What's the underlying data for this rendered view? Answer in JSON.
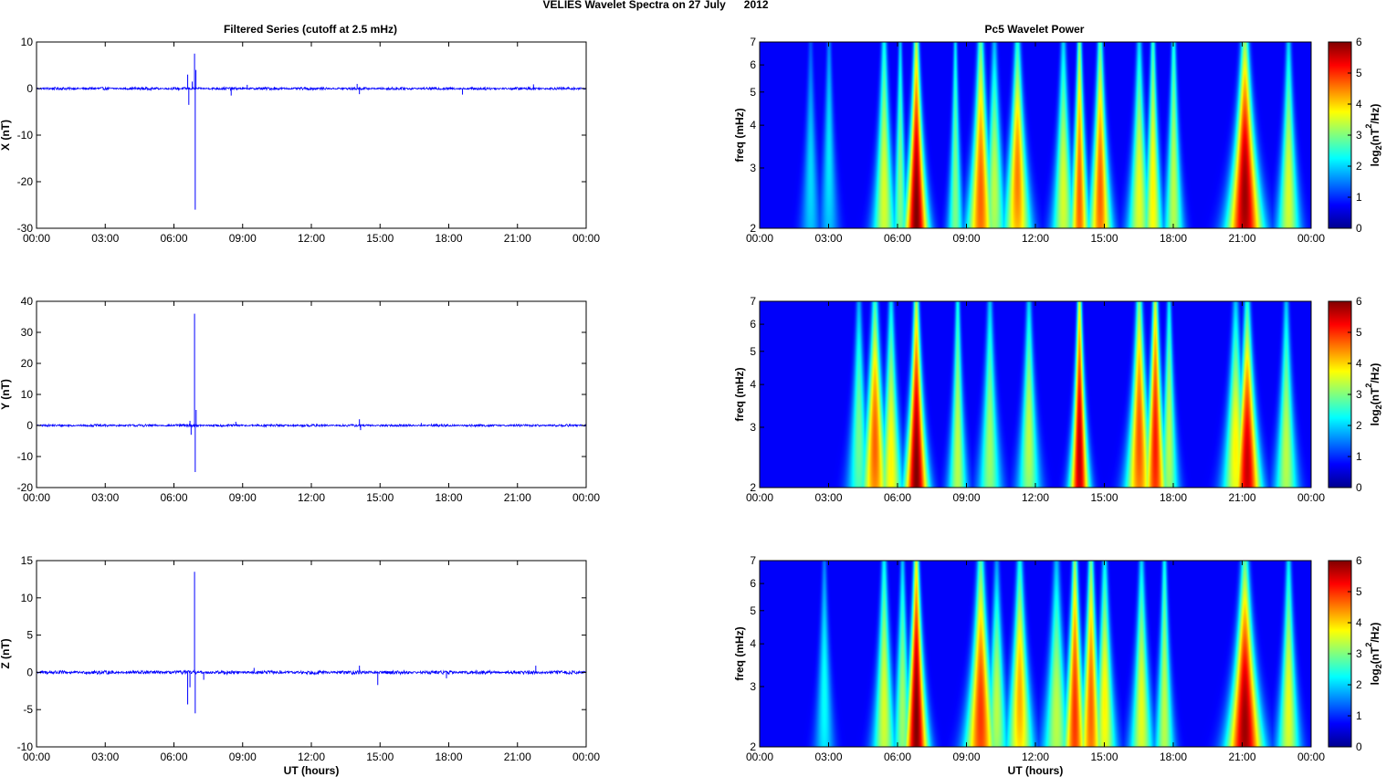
{
  "figure": {
    "suptitle": "VELIES Wavelet Spectra on 27 July      2012",
    "left_title": "Filtered Series (cutoff at 2.5 mHz)",
    "right_title": "Pc5 Wavelet Power"
  },
  "colors": {
    "trace": "#0000ff",
    "colormap": "jet",
    "axis": "#000000",
    "background": "#ffffff"
  },
  "chart_data": [
    {
      "type": "line",
      "ylabel": "X (nT)",
      "xlabel": "",
      "ylim": [
        -30,
        10
      ],
      "yticks": [
        "10",
        "0",
        "-10",
        "-20",
        "-30"
      ],
      "xticks": [
        "00:00",
        "03:00",
        "06:00",
        "09:00",
        "12:00",
        "15:00",
        "18:00",
        "21:00",
        "00:00"
      ],
      "xlim_hours": [
        0,
        24
      ],
      "baseline_noise_nT": 0.3,
      "series": [
        {
          "spikes": [
            {
              "t": 6.6,
              "v": 3.0
            },
            {
              "t": 6.65,
              "v": -3.5
            },
            {
              "t": 6.8,
              "v": 1.5
            },
            {
              "t": 6.9,
              "v": 7.5
            },
            {
              "t": 6.93,
              "v": -26.0
            },
            {
              "t": 6.96,
              "v": 4.0
            },
            {
              "t": 8.5,
              "v": -1.5
            },
            {
              "t": 9.2,
              "v": 0.8
            },
            {
              "t": 14.0,
              "v": 1.0
            },
            {
              "t": 14.1,
              "v": -1.2
            },
            {
              "t": 18.6,
              "v": -1.3
            },
            {
              "t": 21.7,
              "v": 0.9
            }
          ]
        }
      ]
    },
    {
      "type": "line",
      "ylabel": "Y (nT)",
      "xlabel": "",
      "ylim": [
        -20,
        40
      ],
      "yticks": [
        "40",
        "30",
        "20",
        "10",
        "0",
        "-10",
        "-20"
      ],
      "xticks": [
        "00:00",
        "03:00",
        "06:00",
        "09:00",
        "12:00",
        "15:00",
        "18:00",
        "21:00",
        "00:00"
      ],
      "xlim_hours": [
        0,
        24
      ],
      "baseline_noise_nT": 0.4,
      "series": [
        {
          "spikes": [
            {
              "t": 6.7,
              "v": 1.5
            },
            {
              "t": 6.75,
              "v": -3.0
            },
            {
              "t": 6.9,
              "v": 36.0
            },
            {
              "t": 6.93,
              "v": -15.0
            },
            {
              "t": 6.97,
              "v": 5.0
            },
            {
              "t": 8.7,
              "v": 1.2
            },
            {
              "t": 14.1,
              "v": 2.0
            },
            {
              "t": 14.15,
              "v": -1.5
            },
            {
              "t": 16.8,
              "v": 0.8
            }
          ]
        }
      ]
    },
    {
      "type": "line",
      "ylabel": "Z (nT)",
      "xlabel": "UT (hours)",
      "ylim": [
        -10,
        15
      ],
      "yticks": [
        "15",
        "10",
        "5",
        "0",
        "-5",
        "-10"
      ],
      "xticks": [
        "00:00",
        "03:00",
        "06:00",
        "09:00",
        "12:00",
        "15:00",
        "18:00",
        "21:00",
        "00:00"
      ],
      "xlim_hours": [
        0,
        24
      ],
      "baseline_noise_nT": 0.25,
      "series": [
        {
          "spikes": [
            {
              "t": 6.6,
              "v": -4.3
            },
            {
              "t": 6.7,
              "v": -2.0
            },
            {
              "t": 6.9,
              "v": 13.5
            },
            {
              "t": 6.93,
              "v": -5.5
            },
            {
              "t": 7.3,
              "v": -1.0
            },
            {
              "t": 9.5,
              "v": 0.6
            },
            {
              "t": 14.1,
              "v": 0.9
            },
            {
              "t": 14.9,
              "v": -1.7
            },
            {
              "t": 17.9,
              "v": -0.8
            },
            {
              "t": 21.8,
              "v": 0.9
            }
          ]
        }
      ]
    },
    {
      "type": "heatmap",
      "ylabel": "freq (mHz)",
      "xlabel": "",
      "y_scale": "log",
      "ylim": [
        2,
        7
      ],
      "yticks": [
        "7",
        "6",
        "5",
        "4",
        "3",
        "2"
      ],
      "xticks": [
        "00:00",
        "03:00",
        "06:00",
        "09:00",
        "12:00",
        "15:00",
        "18:00",
        "21:00",
        "00:00"
      ],
      "xlim_hours": [
        0,
        24
      ],
      "colorbar": {
        "label": "log2(nT2/Hz)",
        "ticks": [
          "6",
          "5",
          "4",
          "3",
          "2",
          "1",
          "0"
        ],
        "range": [
          0,
          6
        ]
      },
      "blobs": [
        {
          "t": 6.8,
          "w": 0.3,
          "p": 6.0,
          "c": 2.2,
          "tall": 1
        },
        {
          "t": 5.4,
          "w": 0.3,
          "p": 3.2,
          "c": 2.6,
          "tall": 0.9
        },
        {
          "t": 6.1,
          "w": 0.2,
          "p": 2.6,
          "c": 2.7,
          "tall": 0.8
        },
        {
          "t": 8.5,
          "w": 0.2,
          "p": 2.6,
          "c": 2.6,
          "tall": 1
        },
        {
          "t": 9.6,
          "w": 0.35,
          "p": 4.5,
          "c": 2.5,
          "tall": 0.9
        },
        {
          "t": 10.2,
          "w": 0.3,
          "p": 3.0,
          "c": 2.7,
          "tall": 0.6
        },
        {
          "t": 11.2,
          "w": 0.35,
          "p": 4.3,
          "c": 2.8,
          "tall": 0.6
        },
        {
          "t": 13.2,
          "w": 0.3,
          "p": 3.2,
          "c": 2.6,
          "tall": 0.7
        },
        {
          "t": 13.9,
          "w": 0.25,
          "p": 4.5,
          "c": 2.5,
          "tall": 1
        },
        {
          "t": 14.8,
          "w": 0.3,
          "p": 4.5,
          "c": 2.6,
          "tall": 0.8
        },
        {
          "t": 16.5,
          "w": 0.3,
          "p": 3.3,
          "c": 2.6,
          "tall": 0.7
        },
        {
          "t": 17.1,
          "w": 0.25,
          "p": 3.5,
          "c": 2.6,
          "tall": 1
        },
        {
          "t": 18.0,
          "w": 0.25,
          "p": 3.0,
          "c": 2.7,
          "tall": 1
        },
        {
          "t": 21.1,
          "w": 0.45,
          "p": 5.8,
          "c": 2.5,
          "tall": 0.8
        },
        {
          "t": 23.0,
          "w": 0.3,
          "p": 3.2,
          "c": 2.6,
          "tall": 0.7
        },
        {
          "t": 2.2,
          "w": 0.25,
          "p": 1.5,
          "c": 2.8,
          "tall": 0.5
        },
        {
          "t": 3.0,
          "w": 0.25,
          "p": 1.6,
          "c": 3.2,
          "tall": 0.6
        }
      ]
    },
    {
      "type": "heatmap",
      "ylabel": "freq (mHz)",
      "xlabel": "",
      "y_scale": "log",
      "ylim": [
        2,
        7
      ],
      "yticks": [
        "7",
        "6",
        "5",
        "4",
        "3",
        "2"
      ],
      "xticks": [
        "00:00",
        "03:00",
        "06:00",
        "09:00",
        "12:00",
        "15:00",
        "18:00",
        "21:00",
        "00:00"
      ],
      "xlim_hours": [
        0,
        24
      ],
      "colorbar": {
        "label": "log2(nT2/Hz)",
        "ticks": [
          "6",
          "5",
          "4",
          "3",
          "2",
          "1",
          "0"
        ],
        "range": [
          0,
          6
        ]
      },
      "blobs": [
        {
          "t": 6.8,
          "w": 0.3,
          "p": 6.0,
          "c": 2.2,
          "tall": 1
        },
        {
          "t": 5.0,
          "w": 0.35,
          "p": 4.5,
          "c": 2.7,
          "tall": 0.7
        },
        {
          "t": 5.7,
          "w": 0.3,
          "p": 3.5,
          "c": 2.4,
          "tall": 0.8
        },
        {
          "t": 4.3,
          "w": 0.3,
          "p": 2.5,
          "c": 2.9,
          "tall": 0.6
        },
        {
          "t": 8.6,
          "w": 0.25,
          "p": 3.0,
          "c": 2.6,
          "tall": 1
        },
        {
          "t": 10.0,
          "w": 0.3,
          "p": 2.8,
          "c": 2.7,
          "tall": 0.7
        },
        {
          "t": 11.7,
          "w": 0.3,
          "p": 3.0,
          "c": 2.9,
          "tall": 0.6
        },
        {
          "t": 13.9,
          "w": 0.25,
          "p": 5.6,
          "c": 2.5,
          "tall": 1
        },
        {
          "t": 16.5,
          "w": 0.35,
          "p": 4.6,
          "c": 2.8,
          "tall": 0.8
        },
        {
          "t": 17.2,
          "w": 0.3,
          "p": 5.0,
          "c": 2.7,
          "tall": 1
        },
        {
          "t": 17.8,
          "w": 0.25,
          "p": 3.0,
          "c": 2.9,
          "tall": 0.7
        },
        {
          "t": 20.7,
          "w": 0.35,
          "p": 3.5,
          "c": 2.6,
          "tall": 0.6
        },
        {
          "t": 21.2,
          "w": 0.35,
          "p": 5.5,
          "c": 2.3,
          "tall": 0.7
        },
        {
          "t": 22.9,
          "w": 0.3,
          "p": 3.0,
          "c": 2.6,
          "tall": 0.7
        }
      ]
    },
    {
      "type": "heatmap",
      "ylabel": "freq (mHz)",
      "xlabel": "UT (hours)",
      "y_scale": "log",
      "ylim": [
        2,
        7
      ],
      "yticks": [
        "7",
        "6",
        "5",
        "4",
        "3",
        "2"
      ],
      "xticks": [
        "00:00",
        "03:00",
        "06:00",
        "09:00",
        "12:00",
        "15:00",
        "18:00",
        "21:00",
        "00:00"
      ],
      "xlim_hours": [
        0,
        24
      ],
      "colorbar": {
        "label": "log2(nT2/Hz)",
        "ticks": [
          "6",
          "5",
          "4",
          "3",
          "2",
          "1",
          "0"
        ],
        "range": [
          0,
          6
        ]
      },
      "blobs": [
        {
          "t": 6.8,
          "w": 0.3,
          "p": 6.0,
          "c": 2.4,
          "tall": 1
        },
        {
          "t": 5.4,
          "w": 0.3,
          "p": 3.2,
          "c": 2.7,
          "tall": 0.8
        },
        {
          "t": 6.2,
          "w": 0.25,
          "p": 2.8,
          "c": 2.7,
          "tall": 0.7
        },
        {
          "t": 9.6,
          "w": 0.4,
          "p": 4.8,
          "c": 2.5,
          "tall": 0.8
        },
        {
          "t": 10.3,
          "w": 0.3,
          "p": 3.0,
          "c": 2.7,
          "tall": 0.5
        },
        {
          "t": 11.3,
          "w": 0.35,
          "p": 4.0,
          "c": 2.8,
          "tall": 0.6
        },
        {
          "t": 12.9,
          "w": 0.35,
          "p": 3.0,
          "c": 2.5,
          "tall": 0.7
        },
        {
          "t": 13.7,
          "w": 0.3,
          "p": 4.8,
          "c": 2.5,
          "tall": 1
        },
        {
          "t": 14.4,
          "w": 0.3,
          "p": 4.5,
          "c": 2.6,
          "tall": 0.9
        },
        {
          "t": 15.0,
          "w": 0.3,
          "p": 3.5,
          "c": 2.7,
          "tall": 0.7
        },
        {
          "t": 16.6,
          "w": 0.3,
          "p": 3.3,
          "c": 2.6,
          "tall": 0.7
        },
        {
          "t": 17.6,
          "w": 0.25,
          "p": 3.0,
          "c": 2.6,
          "tall": 1
        },
        {
          "t": 21.1,
          "w": 0.45,
          "p": 5.8,
          "c": 2.3,
          "tall": 0.8
        },
        {
          "t": 23.0,
          "w": 0.3,
          "p": 3.3,
          "c": 2.7,
          "tall": 0.7
        },
        {
          "t": 2.8,
          "w": 0.25,
          "p": 1.8,
          "c": 2.9,
          "tall": 0.6
        }
      ]
    }
  ]
}
